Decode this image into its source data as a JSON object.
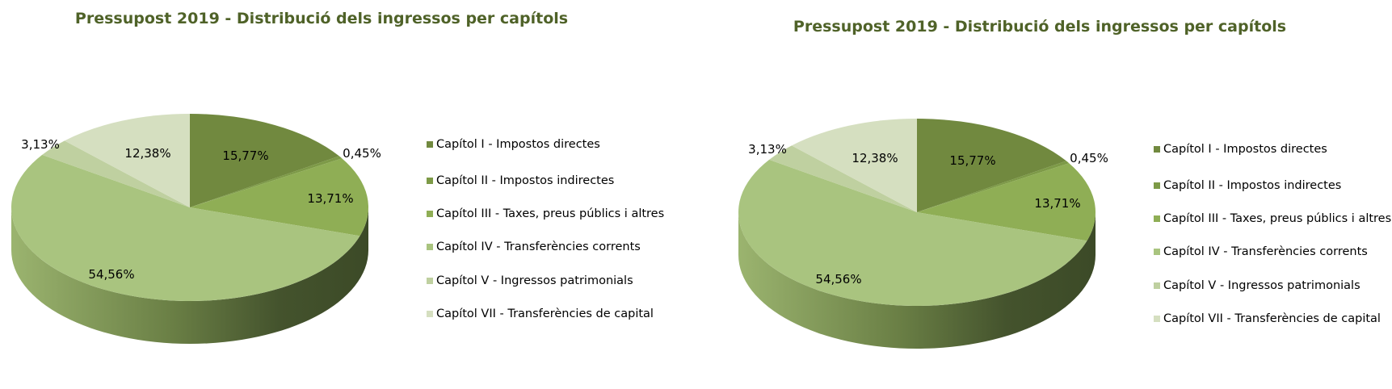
{
  "chart_data": [
    {
      "type": "pie",
      "title": "Pressupost 2019 - Distribució dels ingressos per capítols",
      "categories": [
        "Capítol I - Impostos directes",
        "Capítol II - Impostos indirectes",
        "Capítol III - Taxes, preus públics i altres",
        "Capítol IV - Transferències corrents",
        "Capítol V - Ingressos patrimonials",
        "Capítol VII - Transferències de capital"
      ],
      "values": [
        15.77,
        0.45,
        13.71,
        54.56,
        3.13,
        12.38
      ],
      "labels": [
        "15,77%",
        "0,45%",
        "13,71%",
        "54,56%",
        "3,13%",
        "12,38%"
      ],
      "colors": [
        "#71893f",
        "#7d9a47",
        "#8fae55",
        "#a9c47f",
        "#bfd0a0",
        "#d5dfc0"
      ],
      "legend_position": "right"
    },
    {
      "type": "pie",
      "title": "Pressupost 2019 - Distribució dels ingressos per capítols",
      "categories": [
        "Capítol I - Impostos directes",
        "Capítol II - Impostos indirectes",
        "Capítol III - Taxes, preus públics i altres",
        "Capítol IV - Transferències corrents",
        "Capítol V - Ingressos patrimonials",
        "Capítol VII - Transferències de capital"
      ],
      "values": [
        15.77,
        0.45,
        13.71,
        54.56,
        3.13,
        12.38
      ],
      "labels": [
        "15,77%",
        "0,45%",
        "13,71%",
        "54,56%",
        "3,13%",
        "12,38%"
      ],
      "colors": [
        "#71893f",
        "#7d9a47",
        "#8fae55",
        "#a9c47f",
        "#bfd0a0",
        "#d5dfc0"
      ],
      "legend_position": "right"
    }
  ]
}
